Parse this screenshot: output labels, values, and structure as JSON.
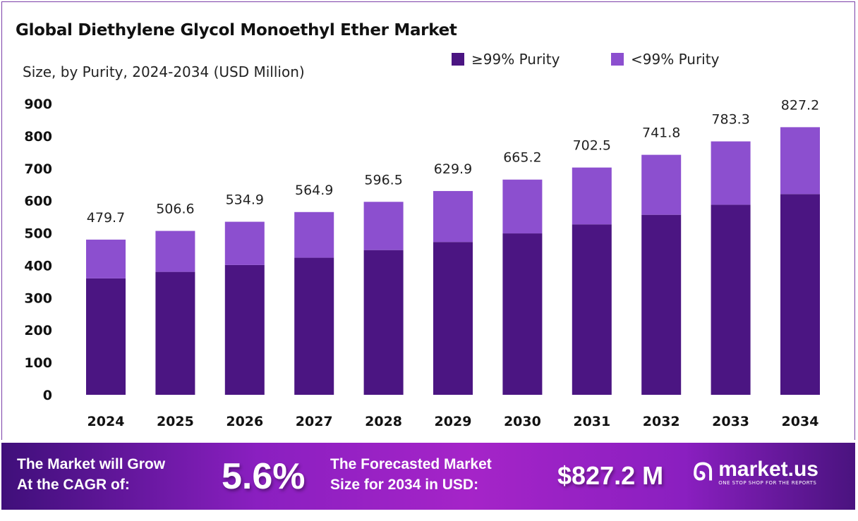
{
  "title": "Global Diethylene Glycol Monoethyl Ether Market",
  "subtitle": "Size, by Purity, 2024-2034 (USD Million)",
  "colors": {
    "high_purity": "#4b1582",
    "low_purity": "#8c4fcf",
    "banner_accent": "#a524c8"
  },
  "chart_data": {
    "type": "bar",
    "stacked": true,
    "categories": [
      "2024",
      "2025",
      "2026",
      "2027",
      "2028",
      "2029",
      "2030",
      "2031",
      "2032",
      "2033",
      "2034"
    ],
    "series": [
      {
        "name": "≥99% Purity",
        "values": [
          359.8,
          380.0,
          401.2,
          423.7,
          447.4,
          472.4,
          498.9,
          526.9,
          556.4,
          587.5,
          620.4
        ]
      },
      {
        "name": "<99% Purity",
        "values": [
          119.9,
          126.6,
          133.7,
          141.2,
          149.1,
          157.5,
          166.3,
          175.6,
          185.4,
          195.8,
          206.8
        ]
      }
    ],
    "totals": [
      "479.7",
      "506.6",
      "534.9",
      "564.9",
      "596.5",
      "629.9",
      "665.2",
      "702.5",
      "741.8",
      "783.3",
      "827.2"
    ],
    "yticks": [
      "0",
      "100",
      "200",
      "300",
      "400",
      "500",
      "600",
      "700",
      "800",
      "900"
    ],
    "ylim": [
      0,
      900
    ],
    "grid": false,
    "legend": "top-right"
  },
  "banner": {
    "cagr_label_1": "The Market will Grow",
    "cagr_label_2": "At the CAGR of:",
    "cagr_value": "5.6%",
    "forecast_label_1": "The Forecasted Market",
    "forecast_label_2": "Size for 2034 in USD:",
    "forecast_value": "$827.2 M",
    "logo_name": "market.us",
    "logo_tagline": "ONE STOP SHOP FOR THE REPORTS"
  }
}
